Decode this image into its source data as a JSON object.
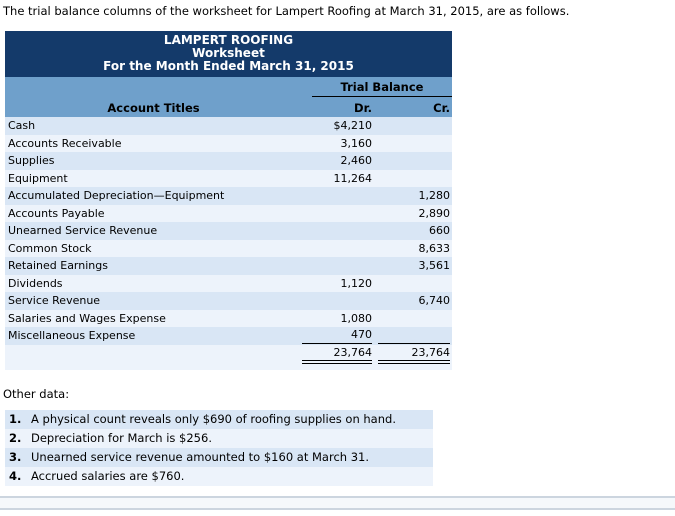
{
  "intro": "The trial balance columns of the worksheet for Lampert Roofing at March 31, 2015, are as follows.",
  "worksheet": {
    "title": "LAMPERT ROOFING",
    "subtitle": "Worksheet",
    "period": "For the Month Ended March 31, 2015",
    "column_group": "Trial Balance",
    "columns": {
      "account": "Account Titles",
      "dr": "Dr.",
      "cr": "Cr."
    },
    "rows": [
      {
        "account": "Cash",
        "dr": "$4,210",
        "cr": ""
      },
      {
        "account": "Accounts Receivable",
        "dr": "3,160",
        "cr": ""
      },
      {
        "account": "Supplies",
        "dr": "2,460",
        "cr": ""
      },
      {
        "account": "Equipment",
        "dr": "11,264",
        "cr": ""
      },
      {
        "account": "Accumulated Depreciation—Equipment",
        "dr": "",
        "cr": "1,280"
      },
      {
        "account": "Accounts Payable",
        "dr": "",
        "cr": "2,890"
      },
      {
        "account": "Unearned Service Revenue",
        "dr": "",
        "cr": "660"
      },
      {
        "account": "Common Stock",
        "dr": "",
        "cr": "8,633"
      },
      {
        "account": "Retained Earnings",
        "dr": "",
        "cr": "3,561"
      },
      {
        "account": "Dividends",
        "dr": "1,120",
        "cr": ""
      },
      {
        "account": "Service Revenue",
        "dr": "",
        "cr": "6,740"
      },
      {
        "account": "Salaries and Wages Expense",
        "dr": "1,080",
        "cr": ""
      },
      {
        "account": "Miscellaneous Expense",
        "dr": "470",
        "cr": ""
      }
    ],
    "totals": {
      "account": "",
      "dr": "23,764",
      "cr": "23,764"
    }
  },
  "other_data": {
    "heading": "Other data:",
    "items": [
      {
        "num": "1.",
        "text": "A physical count reveals only $690 of roofing supplies on hand."
      },
      {
        "num": "2.",
        "text": "Depreciation for March is $256."
      },
      {
        "num": "3.",
        "text": "Unearned service revenue amounted to $160 at March 31."
      },
      {
        "num": "4.",
        "text": "Accrued salaries are $760."
      }
    ]
  },
  "colors": {
    "header_navy": "#143A6A",
    "subheader_blue": "#6FA0CB",
    "row_shade_strong": "#D9E6F5",
    "row_shade_light": "#EDF3FB",
    "divider_band_fill": "#F5F8FB",
    "divider_band_border": "#CCD5DF"
  }
}
